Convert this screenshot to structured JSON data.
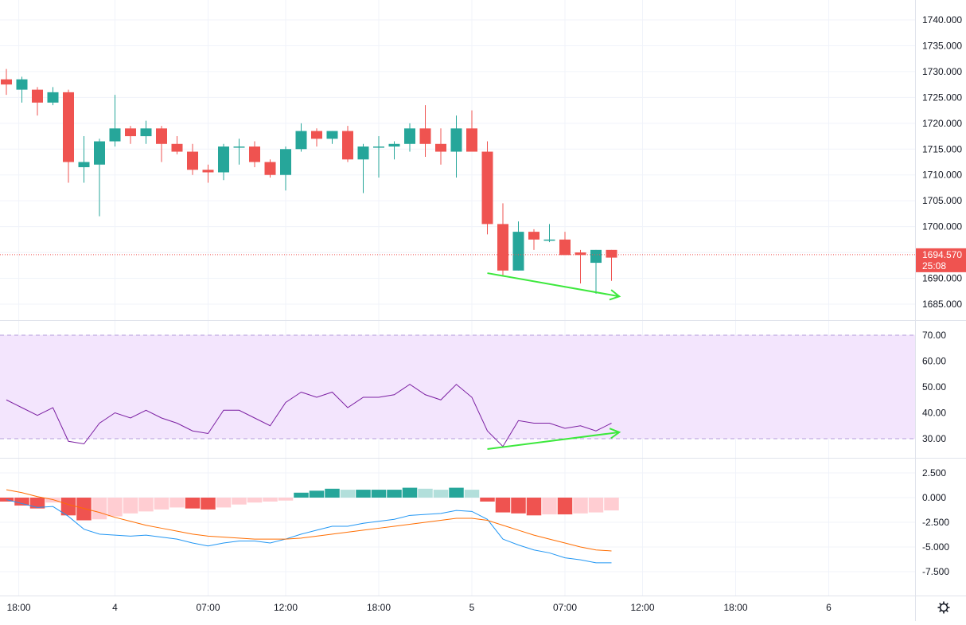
{
  "colors": {
    "up": "#26a69a",
    "down": "#ef5350",
    "hist_pos_strong": "#26a69a",
    "hist_pos_weak": "#b2dfdb",
    "hist_neg_strong": "#ef5350",
    "hist_neg_weak": "#ffcdd2",
    "rsi_line": "#7b1fa2",
    "rsi_band": "#f3e5fd",
    "macd_line": "#2196f3",
    "signal_line": "#ff6d00",
    "annotation": "#3de83d",
    "price_tag": "#ef5350"
  },
  "chart_data": [
    {
      "type": "candlestick",
      "pane": "price",
      "ylim": [
        1680,
        1742
      ],
      "y_ticks": [
        "1740.000",
        "1735.000",
        "1730.000",
        "1725.000",
        "1720.000",
        "1715.000",
        "1710.000",
        "1705.000",
        "1700.000",
        "1695.000",
        "1690.000",
        "1685.000"
      ],
      "current_price": {
        "value": 1694.57,
        "label": "1694.570",
        "countdown": "25:08"
      },
      "candles": [
        {
          "o": 1728.5,
          "h": 1730.5,
          "l": 1725.5,
          "c": 1727.5
        },
        {
          "o": 1726.5,
          "h": 1729.0,
          "l": 1724.0,
          "c": 1728.5
        },
        {
          "o": 1726.5,
          "h": 1727.0,
          "l": 1721.5,
          "c": 1724.0
        },
        {
          "o": 1724.0,
          "h": 1727.0,
          "l": 1723.5,
          "c": 1726.0
        },
        {
          "o": 1726.0,
          "h": 1726.5,
          "l": 1708.5,
          "c": 1712.5
        },
        {
          "o": 1711.5,
          "h": 1717.5,
          "l": 1708.5,
          "c": 1712.5
        },
        {
          "o": 1712.0,
          "h": 1717.0,
          "l": 1702.0,
          "c": 1716.5
        },
        {
          "o": 1716.5,
          "h": 1725.5,
          "l": 1715.5,
          "c": 1719.0
        },
        {
          "o": 1719.0,
          "h": 1719.5,
          "l": 1716.0,
          "c": 1717.5
        },
        {
          "o": 1717.5,
          "h": 1720.5,
          "l": 1716.0,
          "c": 1719.0
        },
        {
          "o": 1719.0,
          "h": 1719.5,
          "l": 1712.5,
          "c": 1716.0
        },
        {
          "o": 1716.0,
          "h": 1717.5,
          "l": 1714.0,
          "c": 1714.5
        },
        {
          "o": 1714.5,
          "h": 1716.0,
          "l": 1710.0,
          "c": 1711.0
        },
        {
          "o": 1711.0,
          "h": 1712.0,
          "l": 1708.5,
          "c": 1710.5
        },
        {
          "o": 1710.5,
          "h": 1716.0,
          "l": 1709.0,
          "c": 1715.5
        },
        {
          "o": 1715.5,
          "h": 1717.0,
          "l": 1712.0,
          "c": 1715.5
        },
        {
          "o": 1715.5,
          "h": 1716.5,
          "l": 1711.5,
          "c": 1712.5
        },
        {
          "o": 1712.5,
          "h": 1713.0,
          "l": 1709.5,
          "c": 1710.0
        },
        {
          "o": 1710.0,
          "h": 1715.5,
          "l": 1707.0,
          "c": 1715.0
        },
        {
          "o": 1715.0,
          "h": 1720.0,
          "l": 1714.5,
          "c": 1718.5
        },
        {
          "o": 1718.5,
          "h": 1719.0,
          "l": 1715.5,
          "c": 1717.0
        },
        {
          "o": 1717.0,
          "h": 1718.5,
          "l": 1716.0,
          "c": 1718.5
        },
        {
          "o": 1718.5,
          "h": 1719.5,
          "l": 1712.5,
          "c": 1713.0
        },
        {
          "o": 1713.0,
          "h": 1716.0,
          "l": 1706.5,
          "c": 1715.5
        },
        {
          "o": 1715.5,
          "h": 1717.5,
          "l": 1709.5,
          "c": 1715.5
        },
        {
          "o": 1715.5,
          "h": 1716.5,
          "l": 1713.0,
          "c": 1716.0
        },
        {
          "o": 1716.0,
          "h": 1720.0,
          "l": 1714.5,
          "c": 1719.0
        },
        {
          "o": 1719.0,
          "h": 1723.5,
          "l": 1713.5,
          "c": 1716.0
        },
        {
          "o": 1716.0,
          "h": 1719.0,
          "l": 1712.0,
          "c": 1714.5
        },
        {
          "o": 1714.5,
          "h": 1721.5,
          "l": 1709.5,
          "c": 1719.0
        },
        {
          "o": 1719.0,
          "h": 1722.5,
          "l": 1714.5,
          "c": 1714.5
        },
        {
          "o": 1714.5,
          "h": 1716.5,
          "l": 1698.5,
          "c": 1700.5
        },
        {
          "o": 1700.5,
          "h": 1704.5,
          "l": 1690.5,
          "c": 1691.5
        },
        {
          "o": 1691.5,
          "h": 1701.0,
          "l": 1691.5,
          "c": 1699.0
        },
        {
          "o": 1699.0,
          "h": 1699.5,
          "l": 1695.5,
          "c": 1697.5
        },
        {
          "o": 1697.5,
          "h": 1700.5,
          "l": 1697.0,
          "c": 1697.5
        },
        {
          "o": 1697.5,
          "h": 1699.0,
          "l": 1694.5,
          "c": 1694.5
        },
        {
          "o": 1695.0,
          "h": 1695.5,
          "l": 1689.0,
          "c": 1694.5
        },
        {
          "o": 1693.0,
          "h": 1695.5,
          "l": 1687.0,
          "c": 1695.5
        },
        {
          "o": 1695.5,
          "h": 1695.5,
          "l": 1689.5,
          "c": 1694.0
        }
      ]
    },
    {
      "type": "line",
      "pane": "rsi",
      "ylim": [
        25,
        73
      ],
      "band": [
        30,
        70
      ],
      "y_ticks": [
        "70.00",
        "60.00",
        "50.00",
        "40.00",
        "30.00"
      ],
      "values": [
        45,
        42,
        39,
        42,
        29,
        28,
        36,
        40,
        38,
        41,
        38,
        36,
        33,
        32,
        41,
        41,
        38,
        35,
        44,
        48,
        46,
        48,
        42,
        46,
        46,
        47,
        51,
        47,
        45,
        51,
        46,
        33,
        27,
        37,
        36,
        36,
        34,
        35,
        33,
        36
      ]
    },
    {
      "type": "histogram+line",
      "pane": "macd",
      "ylim": [
        -9,
        3.5
      ],
      "y_ticks": [
        "2.500",
        "0.000",
        "-2.500",
        "-5.000",
        "-7.500"
      ],
      "histogram": [
        -0.4,
        -0.8,
        -1.1,
        -0.5,
        -1.8,
        -2.3,
        -2.2,
        -1.9,
        -1.6,
        -1.4,
        -1.2,
        -1.0,
        -1.1,
        -1.2,
        -1.0,
        -0.7,
        -0.5,
        -0.4,
        -0.3,
        0.5,
        0.7,
        0.9,
        0.8,
        0.8,
        0.8,
        0.8,
        1.0,
        0.9,
        0.8,
        1.0,
        0.8,
        -0.4,
        -1.5,
        -1.6,
        -1.8,
        -1.7,
        -1.7,
        -1.6,
        -1.5,
        -1.3
      ],
      "macd": [
        -0.2,
        -0.6,
        -1.0,
        -0.9,
        -1.9,
        -3.2,
        -3.7,
        -3.8,
        -3.9,
        -3.8,
        -4.0,
        -4.2,
        -4.6,
        -4.9,
        -4.6,
        -4.4,
        -4.4,
        -4.6,
        -4.2,
        -3.7,
        -3.3,
        -2.9,
        -2.9,
        -2.6,
        -2.4,
        -2.2,
        -1.8,
        -1.7,
        -1.6,
        -1.3,
        -1.4,
        -2.2,
        -4.2,
        -4.8,
        -5.3,
        -5.6,
        -6.1,
        -6.3,
        -6.6,
        -6.6
      ],
      "signal": [
        0.8,
        0.5,
        0.1,
        -0.2,
        -0.7,
        -1.1,
        -1.5,
        -2.0,
        -2.4,
        -2.8,
        -3.1,
        -3.4,
        -3.7,
        -3.9,
        -4.0,
        -4.1,
        -4.2,
        -4.2,
        -4.2,
        -4.1,
        -3.9,
        -3.7,
        -3.5,
        -3.3,
        -3.1,
        -2.9,
        -2.7,
        -2.5,
        -2.3,
        -2.1,
        -2.1,
        -2.3,
        -2.8,
        -3.3,
        -3.8,
        -4.2,
        -4.6,
        -5.0,
        -5.3,
        -5.4
      ]
    }
  ],
  "time_axis": {
    "labels": [
      "18:00",
      "4",
      "07:00",
      "12:00",
      "18:00",
      "5",
      "07:00",
      "12:00",
      "18:00",
      "6"
    ],
    "bar_index": [
      0.8,
      7,
      13,
      18,
      24,
      30,
      36,
      41,
      47,
      53
    ]
  },
  "annotations": [
    {
      "pane": "price",
      "from": [
        31,
        1691.0
      ],
      "to": [
        39.5,
        1686.5
      ]
    },
    {
      "pane": "rsi",
      "from": [
        31,
        26.0
      ],
      "to": [
        39.5,
        32.5
      ]
    }
  ],
  "settings_icon": "gear-icon"
}
